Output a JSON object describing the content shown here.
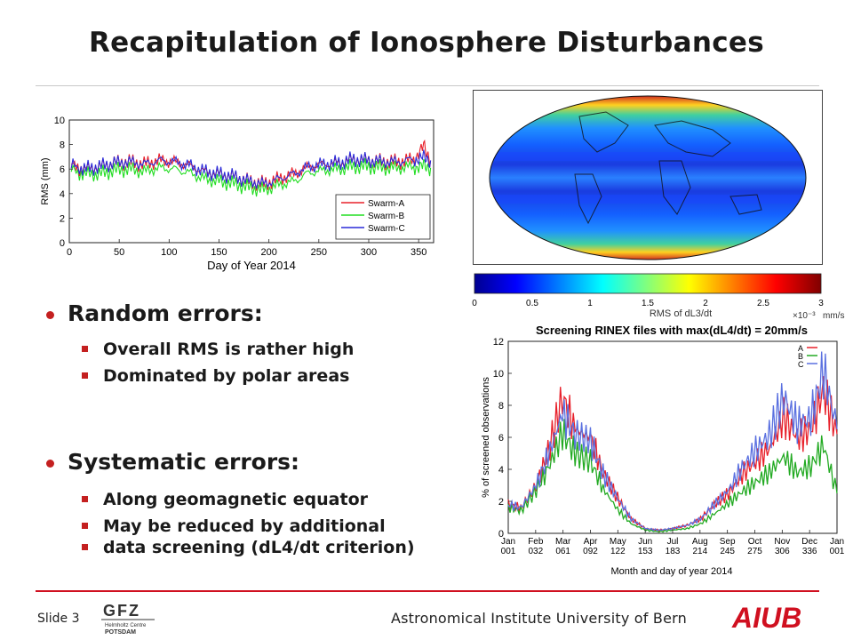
{
  "slide": {
    "title": "Recapitulation of Ionosphere Disturbances",
    "footer_slide": "Slide 3",
    "footer_institute": "Astronomical Institute University of Bern",
    "logo_left_text": "GFZ",
    "logo_left_sub1": "Helmholtz Centre",
    "logo_left_sub2": "POTSDAM",
    "logo_right_text": "AIUB"
  },
  "bullets": [
    {
      "heading": "Random errors:",
      "items": [
        "Overall RMS is rather high",
        "Dominated by polar areas"
      ]
    },
    {
      "heading": "Systematic errors:",
      "items": [
        "Along geomagnetic equator",
        "May be reduced by additional",
        "data screening (dL4/dt criterion)"
      ]
    }
  ],
  "colorbar": {
    "ticks": [
      "0",
      "0.5",
      "1",
      "1.5",
      "2",
      "2.5",
      "3"
    ],
    "label": "RMS of dL3/dt",
    "exponent": "×10⁻³",
    "unit": "mm/s"
  },
  "colors": {
    "swarm_a": "#e8202a",
    "swarm_b": "#22dd22",
    "swarm_c": "#2a2ad8",
    "accent": "#c42020"
  },
  "chart_data": [
    {
      "type": "line",
      "xlabel": "Day of Year 2014",
      "ylabel": "RMS (mm)",
      "xlim": [
        0,
        365
      ],
      "ylim": [
        0,
        10
      ],
      "xticks": [
        "0",
        "50",
        "100",
        "150",
        "200",
        "250",
        "300",
        "350"
      ],
      "yticks": [
        "0",
        "2",
        "4",
        "6",
        "8",
        "10"
      ],
      "legend": "bottom-right",
      "x": [
        2,
        15,
        30,
        45,
        60,
        75,
        90,
        105,
        120,
        135,
        150,
        165,
        180,
        195,
        210,
        225,
        240,
        255,
        270,
        285,
        300,
        315,
        330,
        345,
        355,
        362
      ],
      "series": [
        {
          "name": "Swarm-A",
          "values": [
            6.3,
            6.0,
            6.2,
            6.5,
            6.6,
            6.4,
            6.7,
            6.6,
            6.3,
            5.8,
            5.6,
            5.4,
            5.0,
            4.8,
            5.2,
            5.6,
            6.2,
            6.4,
            6.5,
            6.8,
            6.7,
            6.6,
            6.6,
            6.8,
            7.8,
            6.7
          ]
        },
        {
          "name": "Swarm-B",
          "values": [
            5.9,
            5.6,
            5.6,
            5.9,
            6.0,
            5.8,
            6.1,
            6.0,
            5.7,
            5.2,
            5.0,
            4.8,
            4.5,
            4.3,
            4.7,
            5.0,
            5.7,
            5.9,
            6.0,
            6.2,
            6.2,
            6.1,
            6.1,
            6.2,
            6.2,
            6.1
          ]
        },
        {
          "name": "Swarm-C",
          "values": [
            6.3,
            6.0,
            6.2,
            6.5,
            6.6,
            6.4,
            6.7,
            6.6,
            6.3,
            5.8,
            5.6,
            5.4,
            5.0,
            4.8,
            5.2,
            5.6,
            6.2,
            6.4,
            6.5,
            6.8,
            6.7,
            6.6,
            6.6,
            6.8,
            6.9,
            6.7
          ]
        }
      ]
    },
    {
      "type": "line",
      "title": "Screening RINEX files with max(dL4/dt) = 20mm/s",
      "xlabel": "Month and day of year 2014",
      "ylabel": "% of screened observations",
      "ylim": [
        0,
        12
      ],
      "yticks": [
        "0",
        "2",
        "4",
        "6",
        "8",
        "10",
        "12"
      ],
      "legend": "top-right",
      "xticks_month": [
        "Jan",
        "Feb",
        "Mar",
        "Apr",
        "May",
        "Jun",
        "Jul",
        "Aug",
        "Sep",
        "Oct",
        "Nov",
        "Dec",
        "Jan"
      ],
      "xticks_doy": [
        "001",
        "032",
        "061",
        "092",
        "122",
        "153",
        "183",
        "214",
        "245",
        "275",
        "306",
        "336",
        "001"
      ],
      "x": [
        1,
        15,
        32,
        45,
        61,
        75,
        92,
        106,
        122,
        137,
        153,
        168,
        183,
        199,
        214,
        229,
        245,
        260,
        275,
        290,
        306,
        321,
        336,
        350,
        365
      ],
      "series": [
        {
          "name": "A",
          "values": [
            1.8,
            1.6,
            3.0,
            5.0,
            8.5,
            6.5,
            6.0,
            3.8,
            2.2,
            0.9,
            0.3,
            0.2,
            0.3,
            0.5,
            0.9,
            1.8,
            2.5,
            3.7,
            4.5,
            5.3,
            7.3,
            6.0,
            6.5,
            9.0,
            6.2
          ]
        },
        {
          "name": "B",
          "values": [
            1.6,
            1.4,
            2.7,
            4.0,
            6.3,
            5.0,
            4.5,
            2.8,
            1.5,
            0.6,
            0.2,
            0.1,
            0.2,
            0.3,
            0.6,
            1.2,
            1.9,
            2.6,
            3.2,
            3.8,
            4.8,
            3.8,
            4.2,
            5.5,
            2.5
          ]
        },
        {
          "name": "C",
          "values": [
            1.8,
            1.6,
            3.0,
            4.8,
            7.5,
            6.2,
            5.8,
            3.7,
            2.2,
            0.9,
            0.3,
            0.2,
            0.3,
            0.5,
            0.9,
            1.8,
            2.7,
            4.1,
            5.2,
            6.1,
            8.5,
            6.8,
            7.2,
            10.2,
            6.5
          ]
        }
      ]
    }
  ]
}
